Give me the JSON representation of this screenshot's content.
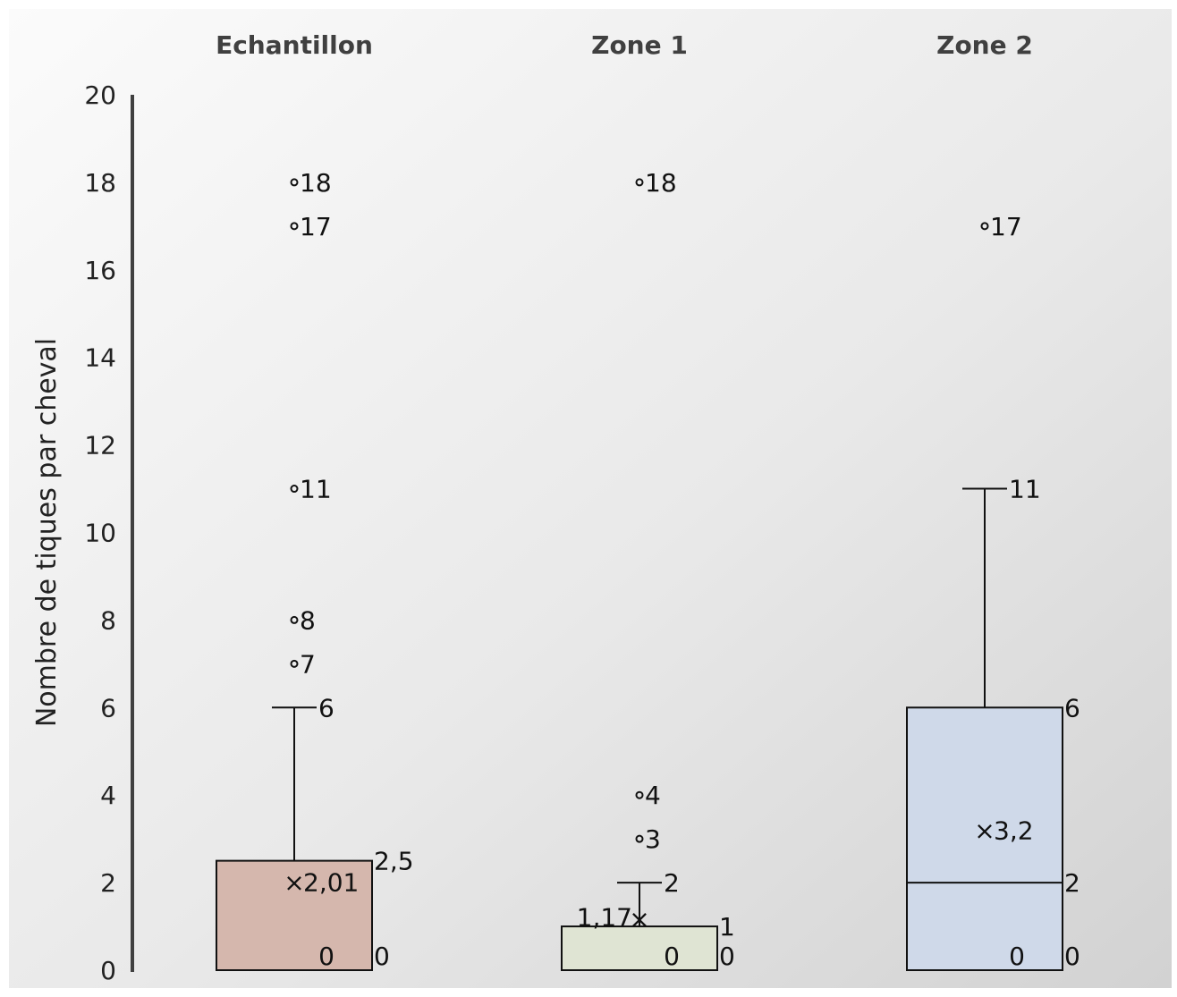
{
  "chart_data": {
    "type": "boxplot",
    "ylabel": "Nombre de tiques par cheval",
    "ylim": [
      0,
      20
    ],
    "yticks": [
      0,
      2,
      4,
      6,
      8,
      10,
      12,
      14,
      16,
      18,
      20
    ],
    "tick_labels": [
      "0",
      "2",
      "4",
      "6",
      "8",
      "10",
      "12",
      "14",
      "16",
      "18",
      "20"
    ],
    "grid": false,
    "legend": "none",
    "categories": [
      "Echantillon",
      "Zone 1",
      "Zone 2"
    ],
    "boxes": [
      {
        "name": "Echantillon",
        "min": 0,
        "q1": 0,
        "median": 0,
        "q3": 2.5,
        "whisker_high": 6,
        "mean": 2.01,
        "outliers": [
          7,
          8,
          11,
          17,
          18
        ],
        "labels": {
          "whisker_high": "6",
          "q3": "2,5",
          "mean": "2,01",
          "median": "0",
          "q1": "0",
          "outliers": [
            "7",
            "8",
            "11",
            "17",
            "18"
          ]
        },
        "color": "#d5b7ad"
      },
      {
        "name": "Zone 1",
        "min": 0,
        "q1": 0,
        "median": 0,
        "q3": 1,
        "whisker_high": 2,
        "mean": 1.17,
        "outliers": [
          3,
          4,
          18
        ],
        "labels": {
          "whisker_high": "2",
          "q3": "1",
          "mean": "1,17",
          "median": "0",
          "q1": "0",
          "outliers": [
            "3",
            "4",
            "18"
          ]
        },
        "color": "#dfe4d3"
      },
      {
        "name": "Zone 2",
        "min": 0,
        "q1": 0,
        "median": 2,
        "q3": 6,
        "whisker_high": 11,
        "mean": 3.2,
        "outliers": [
          17
        ],
        "labels": {
          "whisker_high": "11",
          "q3": "6",
          "mean": "3,2",
          "median": "2",
          "q1": "0",
          "zero": "0",
          "outliers": [
            "17"
          ]
        },
        "color": "#cfd9e9"
      }
    ]
  }
}
